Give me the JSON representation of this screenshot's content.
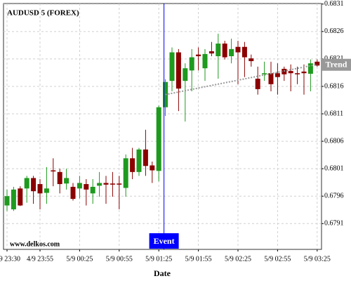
{
  "chart_data": {
    "type": "candlestick",
    "title": "AUDUSD 5 (FOREX)",
    "x_label": "Date",
    "watermark": "www.delkos.com",
    "categories": [
      "4/9 23:30",
      null,
      null,
      null,
      null,
      "4/9 23:55",
      null,
      null,
      null,
      null,
      null,
      "5/9 00:25",
      null,
      null,
      null,
      null,
      null,
      "5/9 00:55",
      null,
      null,
      null,
      null,
      null,
      "5/9 01:25",
      null,
      null,
      null,
      null,
      null,
      "5/9 01:55",
      null,
      null,
      null,
      null,
      null,
      "5/9 02:25",
      null,
      null,
      null,
      null,
      null,
      "5/9 02:55",
      null,
      null,
      null,
      null,
      null,
      "5/9 03:25"
    ],
    "open": [
      0.67943,
      0.67936,
      0.67974,
      0.67974,
      0.67993,
      0.67982,
      0.67966,
      0.68007,
      0.68004,
      0.67983,
      0.67977,
      0.67974,
      0.67982,
      0.67965,
      0.67979,
      0.67984,
      0.67983,
      0.67983,
      0.67975,
      0.68029,
      0.68004,
      0.68045,
      0.68016,
      0.68006,
      0.68122,
      0.6817,
      0.68222,
      0.6817,
      0.68189,
      0.68218,
      0.68193,
      0.68224,
      0.68215,
      0.68238,
      0.68215,
      0.68232,
      0.68232,
      0.68211,
      0.68174,
      0.68182,
      0.68184,
      0.68184,
      0.68192,
      0.68188,
      0.68184,
      0.68187,
      0.68183,
      0.68205
    ],
    "high": [
      0.67972,
      0.67977,
      0.67978,
      0.67997,
      0.67997,
      0.67991,
      0.68013,
      0.68029,
      0.6801,
      0.6801,
      0.67984,
      0.67997,
      0.67991,
      0.67991,
      0.68004,
      0.67997,
      0.68004,
      0.67997,
      0.68036,
      0.68048,
      0.68048,
      0.68081,
      0.68023,
      0.68125,
      0.68173,
      0.68231,
      0.68228,
      0.68202,
      0.68228,
      0.68231,
      0.68228,
      0.68241,
      0.68256,
      0.68243,
      0.68247,
      0.68243,
      0.68241,
      0.68218,
      0.68196,
      0.68205,
      0.68205,
      0.68202,
      0.68196,
      0.682,
      0.68196,
      0.682,
      0.68209,
      0.68209
    ],
    "low": [
      0.67933,
      0.67933,
      0.67942,
      0.67948,
      0.67946,
      0.67936,
      0.67946,
      0.67978,
      0.67965,
      0.67972,
      0.67952,
      0.67956,
      0.67943,
      0.67946,
      0.67959,
      0.67946,
      0.67959,
      0.67936,
      0.67959,
      0.67991,
      0.67997,
      0.67997,
      0.67984,
      0.67987,
      0.68106,
      0.68151,
      0.68115,
      0.68096,
      0.68151,
      0.68189,
      0.6817,
      0.68215,
      0.68174,
      0.68209,
      0.68202,
      0.68164,
      0.68177,
      0.68196,
      0.68145,
      0.6817,
      0.68151,
      0.68145,
      0.6817,
      0.68151,
      0.68164,
      0.68145,
      0.68151,
      0.68196
    ],
    "close": [
      0.6796,
      0.67972,
      0.67943,
      0.67993,
      0.67969,
      0.67965,
      0.67974,
      0.68005,
      0.67982,
      0.67993,
      0.67955,
      0.67984,
      0.67972,
      0.67977,
      0.67984,
      0.67981,
      0.67981,
      0.67981,
      0.68029,
      0.68004,
      0.68045,
      0.68015,
      0.68007,
      0.68122,
      0.68168,
      0.68222,
      0.68156,
      0.68193,
      0.68213,
      0.68215,
      0.68219,
      0.6822,
      0.68238,
      0.68213,
      0.68228,
      0.68222,
      0.68213,
      0.68206,
      0.68155,
      0.68184,
      0.68164,
      0.68177,
      0.68182,
      0.68184,
      0.68182,
      0.68184,
      0.68202,
      0.68198
    ],
    "up_color": "#1e9a1e",
    "down_color": "#8b0000",
    "ylim": [
      0.67863,
      0.68311
    ],
    "yticks": [
      {
        "value": 0.6791,
        "label": "0.6791"
      },
      {
        "value": 0.6796,
        "label": "0.6796"
      },
      {
        "value": 0.6801,
        "label": "0.6801"
      },
      {
        "value": 0.6806,
        "label": "0.6806"
      },
      {
        "value": 0.6811,
        "label": "0.6811"
      },
      {
        "value": 0.6816,
        "label": "0.6816"
      },
      {
        "value": 0.6821,
        "label": "0.6821"
      },
      {
        "value": 0.6826,
        "label": "0.6826"
      },
      {
        "value": 0.6831,
        "label": "0.6831"
      }
    ],
    "grid": true,
    "event": {
      "label": "Event",
      "index": 24,
      "color": "#0000ff"
    },
    "trend": {
      "label": "Trend",
      "start_index": 24,
      "start_value": 0.68145,
      "end_index": 47,
      "end_value": 0.682,
      "color": "#999999"
    }
  }
}
